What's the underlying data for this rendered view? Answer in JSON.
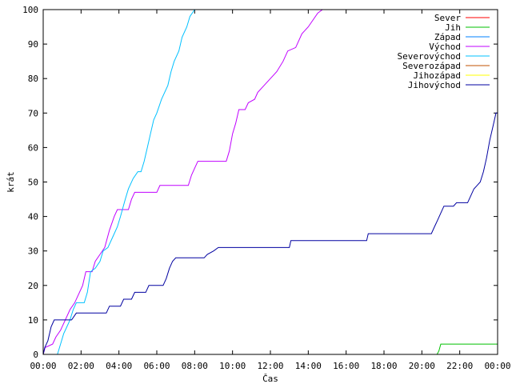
{
  "chart_data": {
    "type": "line",
    "xlabel": "Čas",
    "ylabel": "krát",
    "xlim": [
      "00:00",
      "24:00"
    ],
    "ylim": [
      0,
      100
    ],
    "x_ticks": [
      "00:00",
      "02:00",
      "04:00",
      "06:00",
      "08:00",
      "10:00",
      "12:00",
      "14:00",
      "16:00",
      "18:00",
      "20:00",
      "22:00",
      "00:00"
    ],
    "y_ticks": [
      "0",
      "10",
      "20",
      "30",
      "40",
      "50",
      "60",
      "70",
      "80",
      "90",
      "100"
    ],
    "legend_position": "top-right",
    "grid": false,
    "series": [
      {
        "name": "Sever",
        "color": "#ff0000",
        "points": []
      },
      {
        "name": "Jih",
        "color": "#00c000",
        "points": [
          [
            "00:00",
            0
          ],
          [
            "20:48",
            0
          ],
          [
            "20:54",
            1
          ],
          [
            "20:57",
            2
          ],
          [
            "21:00",
            3
          ],
          [
            "24:00",
            3
          ]
        ]
      },
      {
        "name": "Západ",
        "color": "#0080ff",
        "points": []
      },
      {
        "name": "Východ",
        "color": "#c000ff",
        "points": [
          [
            "00:00",
            0
          ],
          [
            "00:06",
            2
          ],
          [
            "00:30",
            3
          ],
          [
            "00:40",
            5
          ],
          [
            "00:55",
            7
          ],
          [
            "01:10",
            10
          ],
          [
            "01:25",
            13
          ],
          [
            "01:40",
            15
          ],
          [
            "02:05",
            20
          ],
          [
            "02:15",
            24
          ],
          [
            "02:35",
            24
          ],
          [
            "02:45",
            27
          ],
          [
            "03:00",
            29
          ],
          [
            "03:15",
            31
          ],
          [
            "03:30",
            36
          ],
          [
            "03:45",
            40
          ],
          [
            "03:55",
            42
          ],
          [
            "04:30",
            42
          ],
          [
            "04:40",
            45
          ],
          [
            "04:50",
            47
          ],
          [
            "06:00",
            47
          ],
          [
            "06:10",
            49
          ],
          [
            "07:40",
            49
          ],
          [
            "07:50",
            52
          ],
          [
            "08:00",
            54
          ],
          [
            "08:10",
            56
          ],
          [
            "09:40",
            56
          ],
          [
            "09:50",
            59
          ],
          [
            "10:00",
            64
          ],
          [
            "10:10",
            67
          ],
          [
            "10:20",
            71
          ],
          [
            "10:40",
            71
          ],
          [
            "10:50",
            73
          ],
          [
            "11:10",
            74
          ],
          [
            "11:20",
            76
          ],
          [
            "11:40",
            78
          ],
          [
            "12:00",
            80
          ],
          [
            "12:20",
            82
          ],
          [
            "12:40",
            85
          ],
          [
            "12:55",
            88
          ],
          [
            "13:20",
            89
          ],
          [
            "13:40",
            93
          ],
          [
            "14:00",
            95
          ],
          [
            "14:30",
            99
          ],
          [
            "14:45",
            100
          ],
          [
            "15:05",
            100
          ]
        ]
      },
      {
        "name": "Severovýchod",
        "color": "#00c0ff",
        "points": [
          [
            "00:00",
            0
          ],
          [
            "00:45",
            0
          ],
          [
            "00:55",
            3
          ],
          [
            "01:05",
            6
          ],
          [
            "01:15",
            8
          ],
          [
            "01:25",
            10
          ],
          [
            "01:35",
            13
          ],
          [
            "01:45",
            15
          ],
          [
            "02:10",
            15
          ],
          [
            "02:20",
            18
          ],
          [
            "02:30",
            24
          ],
          [
            "02:45",
            25
          ],
          [
            "03:00",
            27
          ],
          [
            "03:10",
            30
          ],
          [
            "03:25",
            31
          ],
          [
            "03:40",
            34
          ],
          [
            "03:55",
            37
          ],
          [
            "04:05",
            40
          ],
          [
            "04:20",
            45
          ],
          [
            "04:30",
            48
          ],
          [
            "04:45",
            51
          ],
          [
            "05:00",
            53
          ],
          [
            "05:10",
            53
          ],
          [
            "05:20",
            56
          ],
          [
            "05:30",
            60
          ],
          [
            "05:40",
            64
          ],
          [
            "05:50",
            68
          ],
          [
            "06:00",
            70
          ],
          [
            "06:15",
            74
          ],
          [
            "06:35",
            78
          ],
          [
            "06:45",
            82
          ],
          [
            "06:55",
            85
          ],
          [
            "07:10",
            88
          ],
          [
            "07:20",
            92
          ],
          [
            "07:35",
            95
          ],
          [
            "07:45",
            98
          ],
          [
            "08:00",
            100
          ]
        ]
      },
      {
        "name": "Severozápad",
        "color": "#c05000",
        "points": []
      },
      {
        "name": "Jihozápad",
        "color": "#ffff00",
        "points": []
      },
      {
        "name": "Jihovýchod",
        "color": "#0000a0",
        "points": [
          [
            "00:00",
            0
          ],
          [
            "00:05",
            2
          ],
          [
            "00:15",
            4
          ],
          [
            "00:25",
            8
          ],
          [
            "00:35",
            10
          ],
          [
            "01:30",
            10
          ],
          [
            "01:45",
            12
          ],
          [
            "03:20",
            12
          ],
          [
            "03:30",
            14
          ],
          [
            "04:05",
            14
          ],
          [
            "04:15",
            16
          ],
          [
            "04:40",
            16
          ],
          [
            "04:50",
            18
          ],
          [
            "05:25",
            18
          ],
          [
            "05:35",
            20
          ],
          [
            "06:20",
            20
          ],
          [
            "06:30",
            22
          ],
          [
            "06:40",
            25
          ],
          [
            "06:50",
            27
          ],
          [
            "07:00",
            28
          ],
          [
            "08:30",
            28
          ],
          [
            "08:40",
            29
          ],
          [
            "09:00",
            30
          ],
          [
            "09:15",
            31
          ],
          [
            "13:00",
            31
          ],
          [
            "13:05",
            33
          ],
          [
            "17:05",
            33
          ],
          [
            "17:10",
            35
          ],
          [
            "20:30",
            35
          ],
          [
            "20:40",
            37
          ],
          [
            "20:50",
            39
          ],
          [
            "21:00",
            41
          ],
          [
            "21:10",
            43
          ],
          [
            "21:40",
            43
          ],
          [
            "21:50",
            44
          ],
          [
            "22:25",
            44
          ],
          [
            "22:35",
            46
          ],
          [
            "22:45",
            48
          ],
          [
            "22:55",
            49
          ],
          [
            "23:05",
            50
          ],
          [
            "23:15",
            53
          ],
          [
            "23:25",
            57
          ],
          [
            "23:35",
            62
          ],
          [
            "23:45",
            66
          ],
          [
            "23:55",
            70
          ],
          [
            "24:00",
            70
          ]
        ]
      }
    ]
  }
}
